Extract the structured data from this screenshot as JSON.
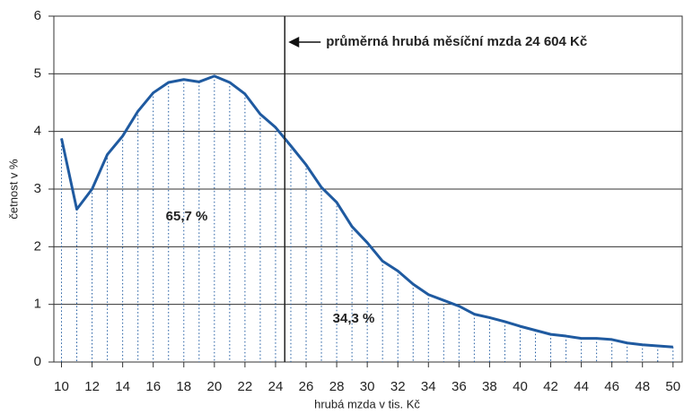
{
  "chart_data": {
    "type": "line",
    "xlabel": "hrubá mzda v tis. Kč",
    "ylabel": "četnost v %",
    "x": [
      10,
      11,
      12,
      13,
      14,
      15,
      16,
      17,
      18,
      19,
      20,
      21,
      22,
      23,
      24,
      25,
      26,
      27,
      28,
      29,
      30,
      31,
      32,
      33,
      34,
      35,
      36,
      37,
      38,
      39,
      40,
      41,
      42,
      43,
      44,
      45,
      46,
      47,
      48,
      49,
      50
    ],
    "values": [
      3.88,
      2.65,
      3.0,
      3.6,
      3.92,
      4.35,
      4.67,
      4.85,
      4.9,
      4.86,
      4.96,
      4.85,
      4.65,
      4.3,
      4.07,
      3.75,
      3.42,
      3.03,
      2.77,
      2.35,
      2.07,
      1.75,
      1.58,
      1.35,
      1.17,
      1.07,
      0.97,
      0.83,
      0.77,
      0.7,
      0.62,
      0.55,
      0.48,
      0.45,
      0.41,
      0.41,
      0.39,
      0.33,
      0.3,
      0.28,
      0.26
    ],
    "color": "#1f5aa0",
    "xlim": [
      9.5,
      50.6
    ],
    "ylim": [
      0,
      6
    ],
    "xticks": [
      10,
      12,
      14,
      16,
      18,
      20,
      22,
      24,
      26,
      28,
      30,
      32,
      34,
      36,
      38,
      40,
      42,
      44,
      46,
      48,
      50
    ],
    "yticks": [
      0,
      1,
      2,
      3,
      4,
      5,
      6
    ],
    "grid": true,
    "mean_line": {
      "value": 24.604,
      "label": "průměrná hrubá měsíční mzda 24 604 Kč"
    },
    "shares": [
      {
        "value": 65.7,
        "label": "65,7 %"
      },
      {
        "value": 34.3,
        "label": "34,3 %"
      }
    ]
  }
}
